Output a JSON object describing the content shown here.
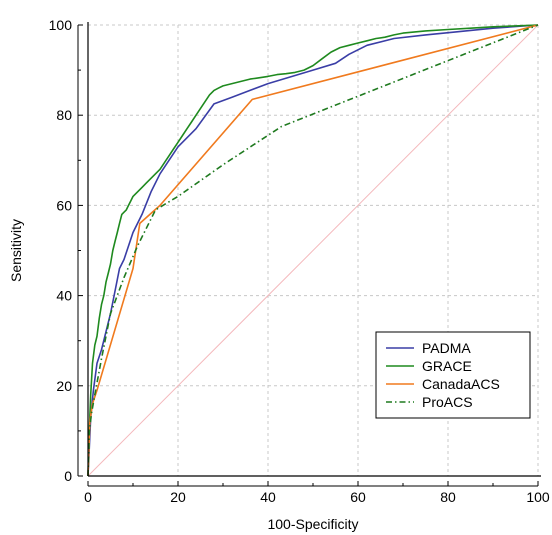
{
  "chart_data": {
    "type": "line",
    "title": "",
    "xlabel": "100-Specificity",
    "ylabel": "Sensitivity",
    "xlim": [
      0,
      100
    ],
    "ylim": [
      0,
      100
    ],
    "xticks": [
      "0",
      "20",
      "40",
      "60",
      "80",
      "100"
    ],
    "yticks": [
      "0",
      "20",
      "40",
      "60",
      "80",
      "100"
    ],
    "grid": true,
    "legend_position": "bottom-right",
    "reference_line": {
      "x": [
        0,
        100
      ],
      "y": [
        0,
        100
      ],
      "color": "#f4b8bc"
    },
    "series": [
      {
        "name": "PADMA",
        "color": "#3a3ea6",
        "style": "solid",
        "x": [
          0,
          0.6,
          1.2,
          2,
          3,
          4,
          5,
          6,
          7,
          8,
          9,
          10,
          12,
          14,
          16,
          18,
          20,
          24,
          28,
          32,
          36,
          40,
          45,
          50,
          55,
          58,
          62,
          68,
          75,
          82,
          90,
          100
        ],
        "y": [
          0,
          13,
          19,
          25,
          28,
          32,
          36,
          41,
          46,
          48,
          51,
          54,
          58,
          63,
          67,
          70,
          73,
          77,
          82.5,
          84,
          85.5,
          87,
          88.5,
          90,
          91.5,
          93.5,
          95.5,
          97,
          97.8,
          98.5,
          99.3,
          100
        ]
      },
      {
        "name": "GRACE",
        "color": "#1f8a1f",
        "style": "solid",
        "x": [
          0,
          0.3,
          0.6,
          1,
          1.5,
          2,
          2.5,
          3,
          3.5,
          4,
          4.5,
          5,
          5.5,
          6,
          6.5,
          7,
          7.5,
          8,
          8.5,
          9,
          9.5,
          10,
          11,
          12,
          13,
          14,
          15,
          16,
          17,
          18,
          19,
          20,
          21,
          22,
          23,
          24,
          25,
          26,
          27,
          28,
          29,
          30,
          32,
          34,
          36,
          38,
          40,
          42,
          44,
          46,
          48,
          50,
          52,
          54,
          56,
          58,
          60,
          62,
          64,
          66,
          68,
          70,
          75,
          80,
          85,
          90,
          95,
          100
        ],
        "y": [
          0,
          10,
          18,
          25,
          29,
          31,
          35,
          38,
          40,
          43,
          45,
          47,
          50,
          52,
          54,
          56,
          58,
          58.5,
          59,
          60,
          61,
          62,
          63,
          64,
          65,
          66,
          67,
          68,
          69.5,
          71,
          72.5,
          74,
          75.5,
          77,
          78.5,
          80,
          81.5,
          83,
          84.5,
          85.5,
          86,
          86.5,
          87,
          87.5,
          88,
          88.3,
          88.6,
          89,
          89.2,
          89.5,
          90,
          91,
          92.5,
          94,
          95,
          95.5,
          96,
          96.5,
          97,
          97.3,
          97.8,
          98.2,
          98.7,
          99,
          99.3,
          99.6,
          99.8,
          100
        ]
      },
      {
        "name": "CanadaACS",
        "color": "#f07a1e",
        "style": "solid",
        "x": [
          0,
          0.4,
          1,
          2,
          10,
          11.5,
          16,
          36.5,
          100
        ],
        "y": [
          0,
          12,
          16,
          19,
          46,
          56,
          60,
          83.5,
          100
        ]
      },
      {
        "name": "ProACS",
        "color": "#1f7a1f",
        "style": "dashdot",
        "x": [
          0,
          0.3,
          0.8,
          1.5,
          3,
          5,
          8,
          11,
          15,
          20,
          30,
          43,
          100
        ],
        "y": [
          0,
          10,
          14,
          18,
          26,
          36,
          44,
          51,
          59,
          62,
          69,
          77.5,
          100
        ]
      }
    ]
  }
}
